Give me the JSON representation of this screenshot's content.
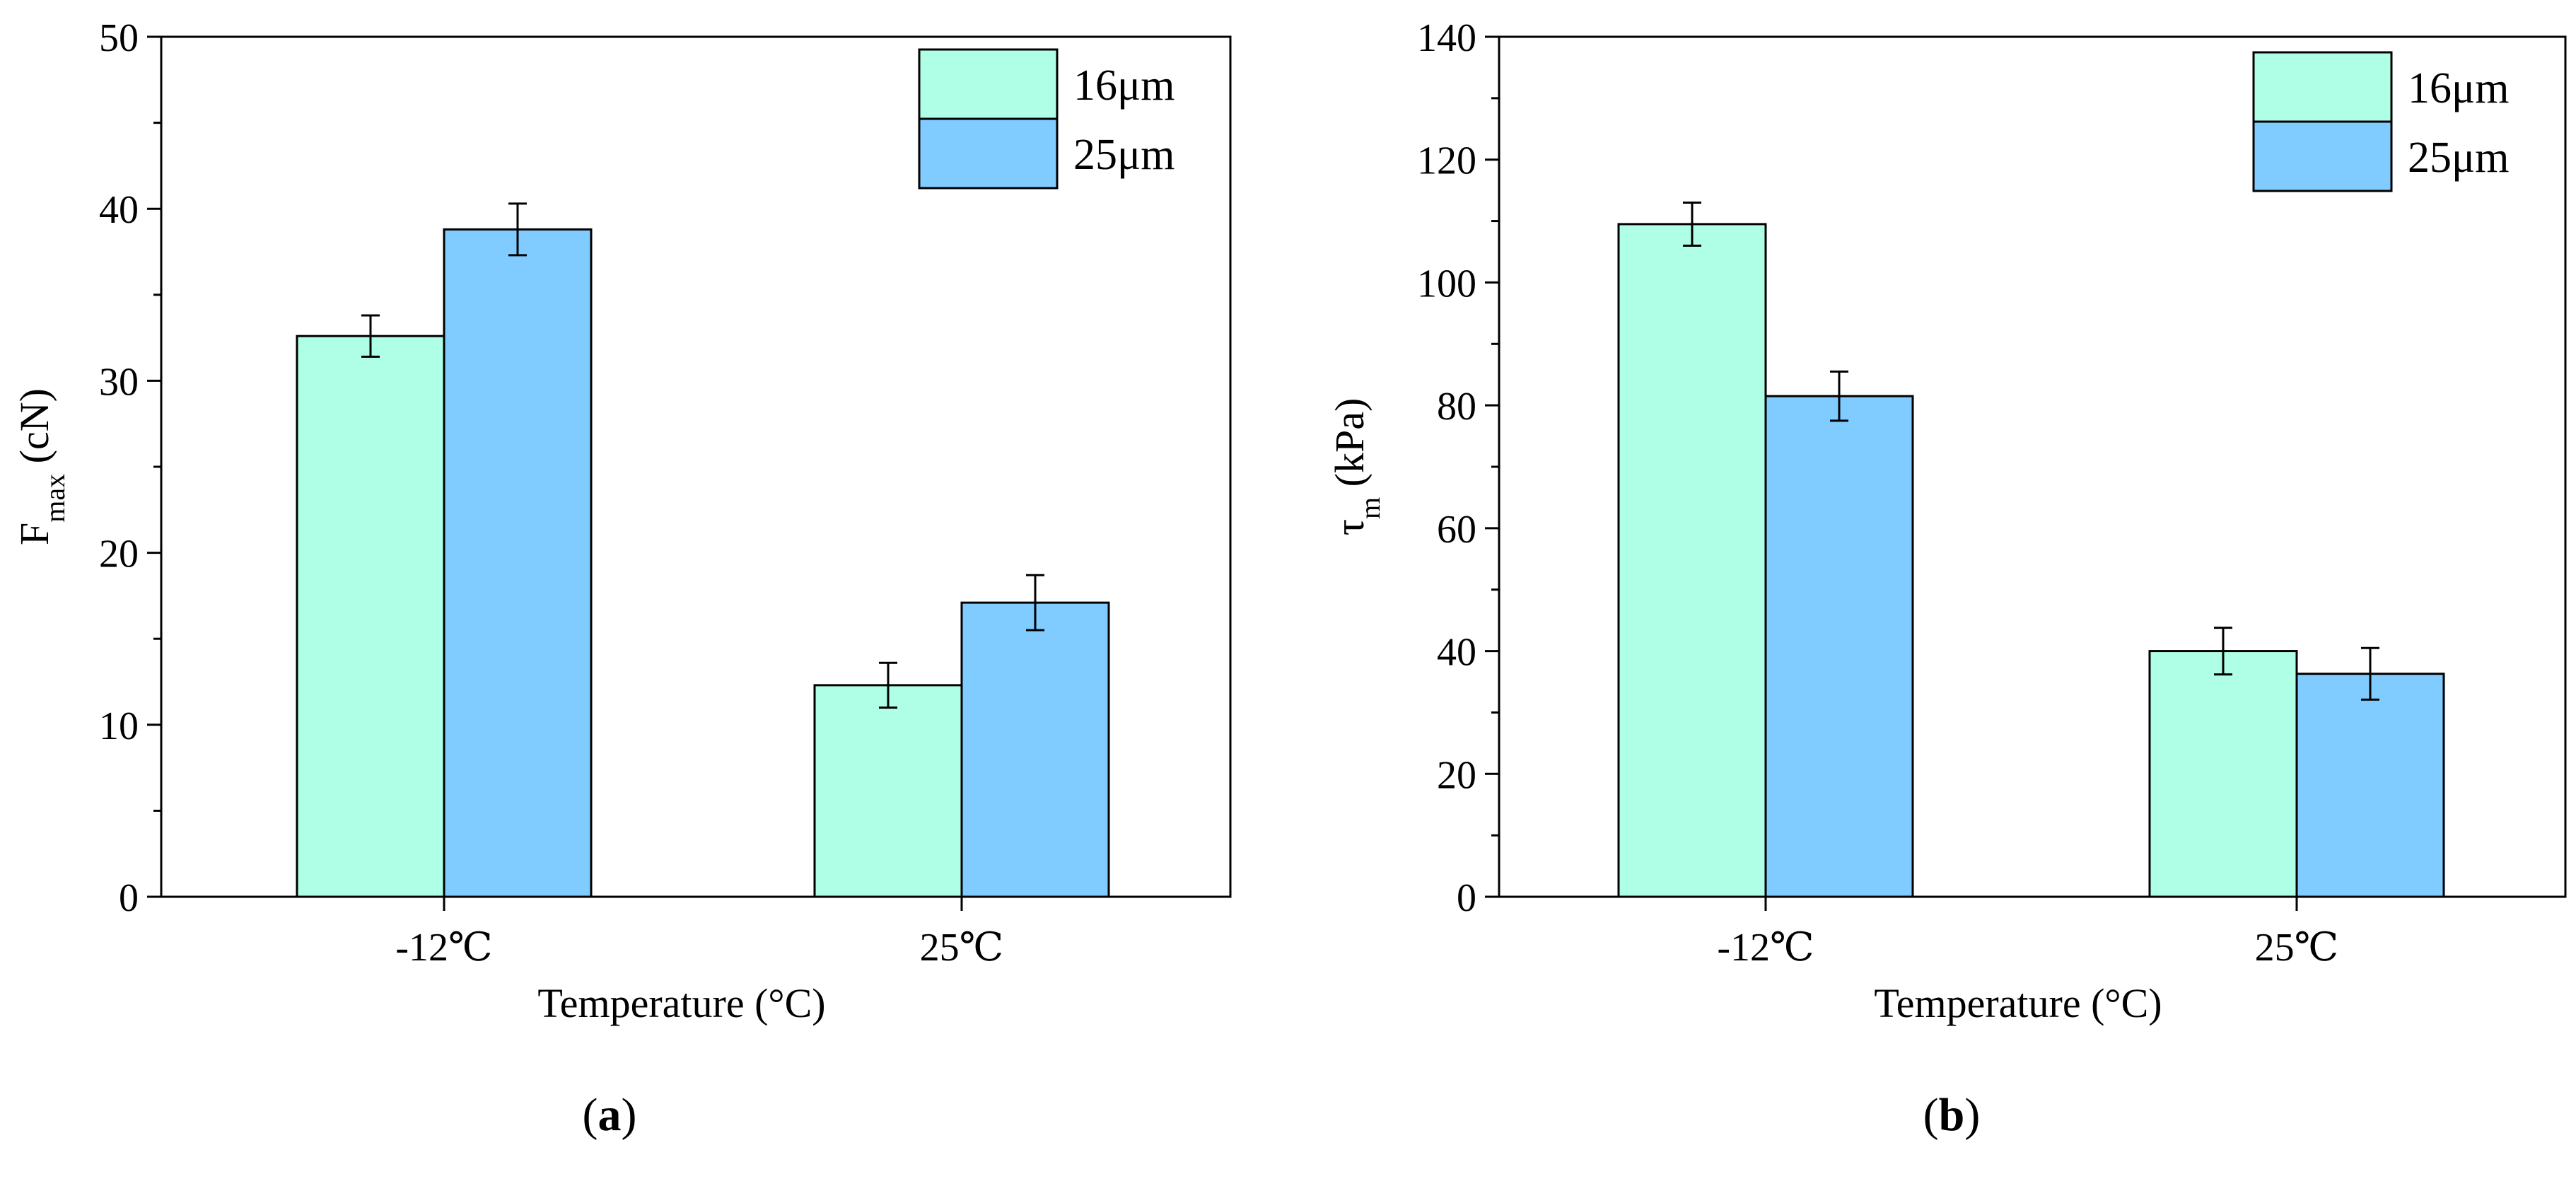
{
  "panels": [
    {
      "label": "a"
    },
    {
      "label": "b"
    }
  ],
  "chart_data": [
    {
      "type": "bar",
      "panel": "a",
      "categories": [
        "-12℃",
        "25℃"
      ],
      "series": [
        {
          "name": "16μm",
          "color": "#AFFFE6",
          "values": [
            32.6,
            12.3
          ],
          "errors": [
            1.2,
            1.3
          ]
        },
        {
          "name": "25μm",
          "color": "#80CBFF",
          "values": [
            38.8,
            17.1
          ],
          "errors": [
            1.5,
            1.6
          ]
        }
      ],
      "xlabel": "Temperature (°C)",
      "ylabel_main": "F",
      "ylabel_sub": "max",
      "ylabel_unit": " (cN)",
      "ylim": [
        0,
        50
      ],
      "yticks": [
        0,
        10,
        20,
        30,
        40,
        50
      ],
      "legend_position": "top-right"
    },
    {
      "type": "bar",
      "panel": "b",
      "categories": [
        "-12℃",
        "25℃"
      ],
      "series": [
        {
          "name": "16μm",
          "color": "#AFFFE6",
          "values": [
            109.5,
            40.0
          ],
          "errors": [
            3.5,
            3.8
          ]
        },
        {
          "name": "25μm",
          "color": "#80CBFF",
          "values": [
            81.5,
            36.3
          ],
          "errors": [
            4.0,
            4.2
          ]
        }
      ],
      "xlabel": "Temperature (°C)",
      "ylabel_main": "τ",
      "ylabel_sub": "m",
      "ylabel_unit": " (kPa)",
      "ylim": [
        0,
        140
      ],
      "yticks": [
        0,
        20,
        40,
        60,
        80,
        100,
        120,
        140
      ],
      "legend_position": "top-right"
    }
  ]
}
